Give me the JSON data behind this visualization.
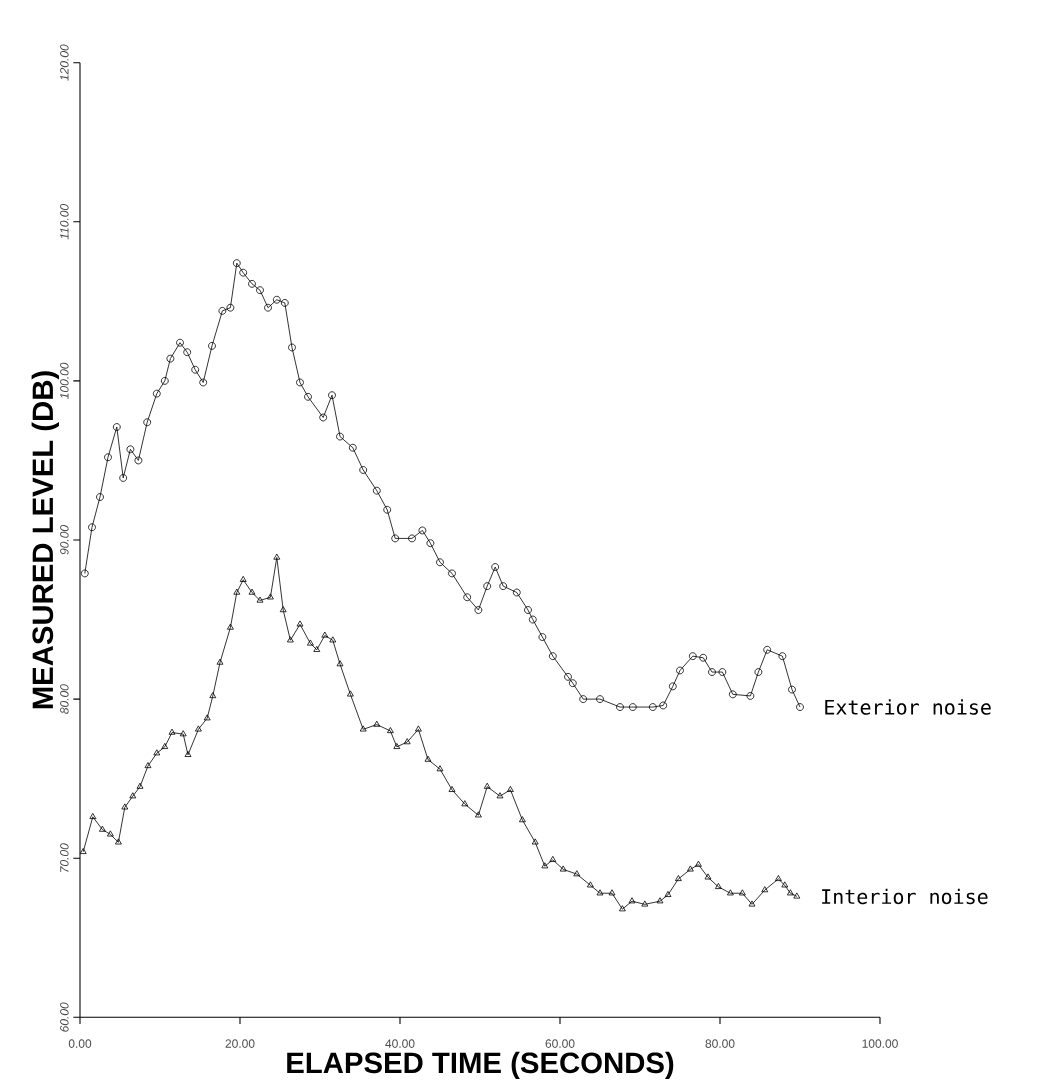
{
  "chart_data": {
    "type": "line",
    "xlabel": "ELAPSED TIME (SECONDS)",
    "ylabel": "MEASURED LEVEL (DB)",
    "xlim": [
      0,
      100
    ],
    "ylim": [
      60,
      120
    ],
    "xticks": [
      {
        "value": 0,
        "label": "0.00"
      },
      {
        "value": 20,
        "label": "20.00"
      },
      {
        "value": 40,
        "label": "40.00"
      },
      {
        "value": 60,
        "label": "60.00"
      },
      {
        "value": 80,
        "label": "80.00"
      },
      {
        "value": 100,
        "label": "100.00"
      }
    ],
    "yticks": [
      {
        "value": 60,
        "label": "60.00"
      },
      {
        "value": 70,
        "label": "70.00"
      },
      {
        "value": 80,
        "label": "80.00"
      },
      {
        "value": 90,
        "label": "90.00"
      },
      {
        "value": 100,
        "label": "100.00"
      },
      {
        "value": 110,
        "label": "110.00"
      },
      {
        "value": 120,
        "label": "120.00"
      }
    ],
    "line_style": "solid",
    "series": [
      {
        "name": "Exterior noise",
        "color": "#000000",
        "marker": "circle",
        "x": [
          0.6,
          1.5,
          2.5,
          3.5,
          4.6,
          5.4,
          6.3,
          7.3,
          8.4,
          9.6,
          10.6,
          11.3,
          12.5,
          13.4,
          14.4,
          15.4,
          16.5,
          17.8,
          18.8,
          19.6,
          20.4,
          21.5,
          22.5,
          23.5,
          24.6,
          25.6,
          26.5,
          27.5,
          28.5,
          30.4,
          31.5,
          32.5,
          34.1,
          35.4,
          37.1,
          38.4,
          39.4,
          41.5,
          42.8,
          43.8,
          45.0,
          46.5,
          48.4,
          49.8,
          50.9,
          51.9,
          52.9,
          54.6,
          56.0,
          56.6,
          57.8,
          59.1,
          61.0,
          61.6,
          62.9,
          65.0,
          67.5,
          69.1,
          71.6,
          72.9,
          74.1,
          75.0,
          76.6,
          77.9,
          79.0,
          80.3,
          81.6,
          83.8,
          84.8,
          85.9,
          87.8,
          89.0,
          90.0
        ],
        "values": [
          87.9,
          90.8,
          92.7,
          95.2,
          97.1,
          93.9,
          95.7,
          95.0,
          97.4,
          99.2,
          100.0,
          101.4,
          102.4,
          101.8,
          100.7,
          99.9,
          102.2,
          104.4,
          104.6,
          107.4,
          106.8,
          106.1,
          105.7,
          104.6,
          105.1,
          104.9,
          102.1,
          99.9,
          99.0,
          97.7,
          99.1,
          96.5,
          95.8,
          94.4,
          93.1,
          91.9,
          90.1,
          90.1,
          90.6,
          89.8,
          88.6,
          87.9,
          86.4,
          85.6,
          87.1,
          88.3,
          87.1,
          86.7,
          85.6,
          85.0,
          83.9,
          82.7,
          81.4,
          81.0,
          80.0,
          80.0,
          79.5,
          79.5,
          79.5,
          79.6,
          80.8,
          81.8,
          82.7,
          82.6,
          81.7,
          81.7,
          80.3,
          80.2,
          81.7,
          83.1,
          82.7,
          80.6,
          79.5
        ]
      },
      {
        "name": "Interior noise",
        "color": "#000000",
        "marker": "triangle",
        "x": [
          0.4,
          1.6,
          2.8,
          3.8,
          4.8,
          5.6,
          6.6,
          7.5,
          8.5,
          9.6,
          10.6,
          11.5,
          12.9,
          13.5,
          14.8,
          15.9,
          16.6,
          17.5,
          18.8,
          19.6,
          20.4,
          21.5,
          22.5,
          23.8,
          24.6,
          25.4,
          26.3,
          27.5,
          28.8,
          29.6,
          30.6,
          31.6,
          32.5,
          33.8,
          35.4,
          37.1,
          38.8,
          39.6,
          40.9,
          42.3,
          43.5,
          45.0,
          46.5,
          48.1,
          49.8,
          50.9,
          52.5,
          53.8,
          55.3,
          56.9,
          58.1,
          59.1,
          60.4,
          62.1,
          63.8,
          65.0,
          66.5,
          67.8,
          69.0,
          70.6,
          72.5,
          73.5,
          74.8,
          76.3,
          77.3,
          78.5,
          79.8,
          81.3,
          82.8,
          84.0,
          85.6,
          87.3,
          88.1,
          88.8,
          89.6
        ],
        "values": [
          70.4,
          72.6,
          71.8,
          71.5,
          71.0,
          73.2,
          73.9,
          74.5,
          75.8,
          76.6,
          77.0,
          77.9,
          77.8,
          76.5,
          78.1,
          78.8,
          80.2,
          82.3,
          84.5,
          86.7,
          87.5,
          86.7,
          86.2,
          86.4,
          88.9,
          85.6,
          83.7,
          84.7,
          83.5,
          83.1,
          84.0,
          83.7,
          82.2,
          80.3,
          78.1,
          78.4,
          78.0,
          77.0,
          77.3,
          78.1,
          76.2,
          75.6,
          74.3,
          73.4,
          72.7,
          74.5,
          73.9,
          74.3,
          72.4,
          71.0,
          69.5,
          69.9,
          69.3,
          69.0,
          68.3,
          67.8,
          67.8,
          66.8,
          67.3,
          67.1,
          67.3,
          67.7,
          68.7,
          69.3,
          69.6,
          68.8,
          68.2,
          67.8,
          67.8,
          67.1,
          68.0,
          68.7,
          68.3,
          67.8,
          67.6
        ]
      }
    ]
  }
}
